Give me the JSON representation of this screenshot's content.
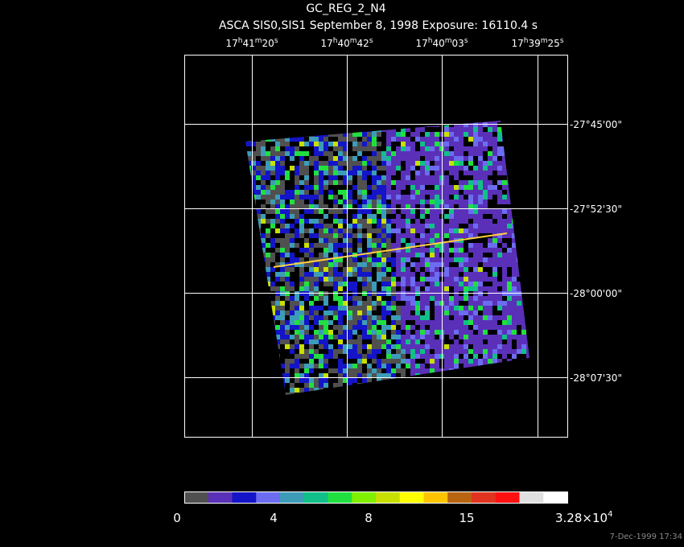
{
  "header": {
    "title": "GC_REG_2_N4",
    "subtitle": "ASCA SIS0,SIS1 September 8, 1998 Exposure: 16110.4 s"
  },
  "ra_labels": [
    [
      "17",
      "h",
      "41",
      "m",
      "20",
      "s"
    ],
    [
      "17",
      "h",
      "40",
      "m",
      "42",
      "s"
    ],
    [
      "17",
      "h",
      "40",
      "m",
      "03",
      "s"
    ],
    [
      "17",
      "h",
      "39",
      "m",
      "25",
      "s"
    ]
  ],
  "dec_labels": [
    "-27°45'00\"",
    "-27°52'30\"",
    "-28°00'00\"",
    "-28°07'30\""
  ],
  "colorbar": {
    "colors": [
      "#505050",
      "#5a30b8",
      "#1414c8",
      "#6c6cf0",
      "#3c9cb8",
      "#10c088",
      "#20e040",
      "#80f000",
      "#c8e000",
      "#ffff00",
      "#ffc400",
      "#b86410",
      "#e03420",
      "#ff1010",
      "#e0e0e0",
      "#ffffff"
    ],
    "labels": [
      "0",
      "4",
      "8",
      "15"
    ],
    "max_label": {
      "mantissa": "3.28×10",
      "exponent": "4"
    }
  },
  "timestamp": "7-Dec-1999 17:34"
}
